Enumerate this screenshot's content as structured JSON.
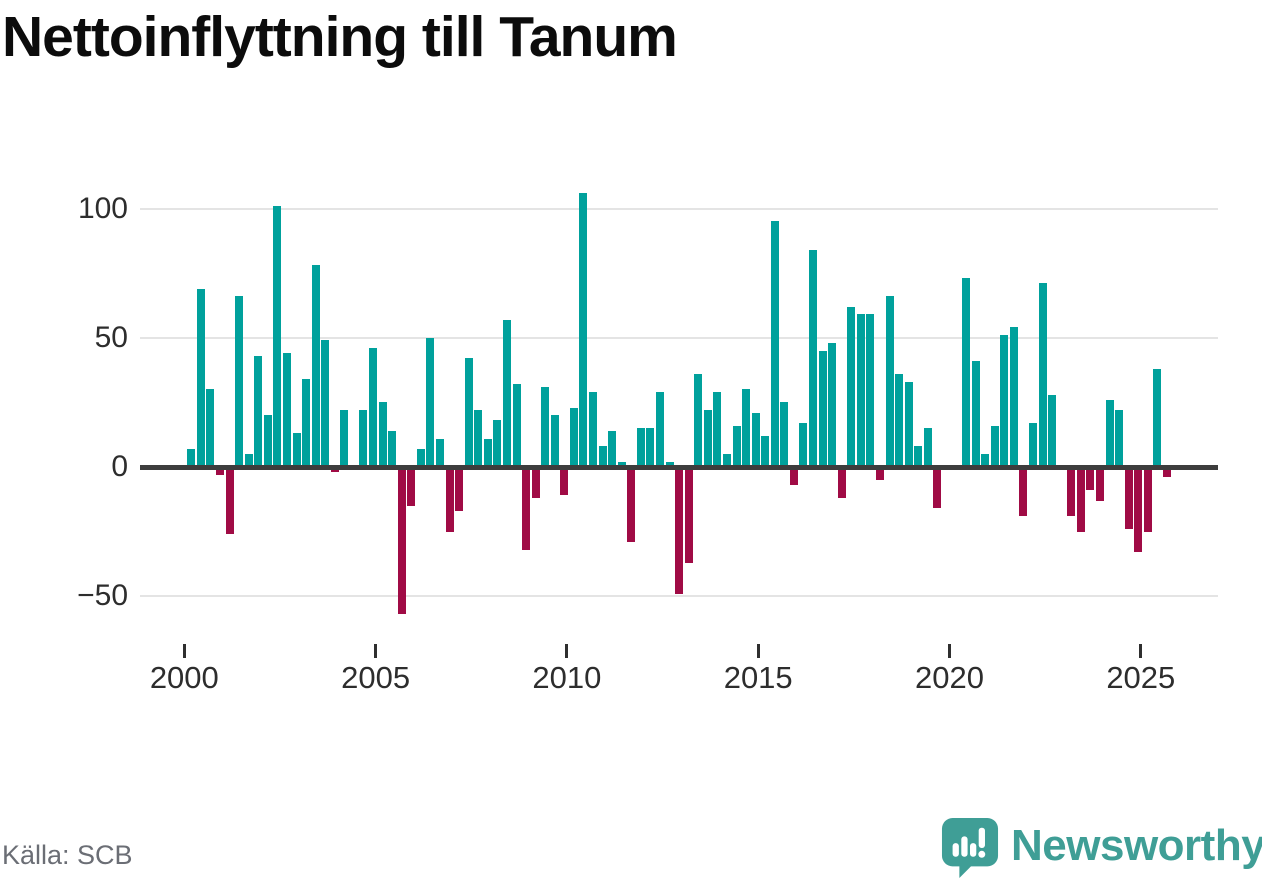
{
  "title": "Nettoinflyttning till Tanum",
  "source_label": "Källa: SCB",
  "branding": {
    "logo_text": "Newsworthy",
    "logo_color": "#3f9e96"
  },
  "chart_data": {
    "type": "bar",
    "title": "Nettoinflyttning till Tanum",
    "frequency": "quarterly",
    "start_year": 2000,
    "start_quarter": 1,
    "series": [
      {
        "name": "Nettoinflyttning",
        "values": [
          7,
          69,
          30,
          -2,
          -25,
          66,
          5,
          43,
          20,
          101,
          44,
          13,
          34,
          78,
          49,
          -1,
          22,
          0,
          22,
          46,
          25,
          14,
          -56,
          -14,
          7,
          50,
          11,
          -24,
          -16,
          42,
          22,
          11,
          18,
          57,
          32,
          -31,
          -11,
          31,
          20,
          -10,
          23,
          106,
          29,
          8,
          14,
          2,
          -28,
          15,
          15,
          29,
          2,
          -48,
          -36,
          36,
          22,
          29,
          5,
          16,
          30,
          21,
          12,
          95,
          25,
          -6,
          17,
          84,
          45,
          48,
          -11,
          62,
          59,
          59,
          -4,
          66,
          36,
          33,
          8,
          15,
          -15,
          0,
          0,
          73,
          41,
          5,
          16,
          51,
          54,
          -18,
          17,
          71,
          28,
          0,
          -18,
          -24,
          -8,
          -12,
          26,
          22,
          -23,
          -32,
          -24,
          38,
          -3
        ]
      }
    ],
    "y_tick_labels": [
      "100",
      "50",
      "0",
      "−50"
    ],
    "y_tick_values": [
      100,
      50,
      0,
      -50
    ],
    "x_tick_years": [
      2000,
      2005,
      2010,
      2015,
      2020,
      2025
    ],
    "ylim": [
      -60,
      110
    ],
    "grid": "horizontal",
    "legend": "none",
    "colors": {
      "positive": "#00a19c",
      "negative": "#a00b45"
    },
    "source": "SCB"
  }
}
